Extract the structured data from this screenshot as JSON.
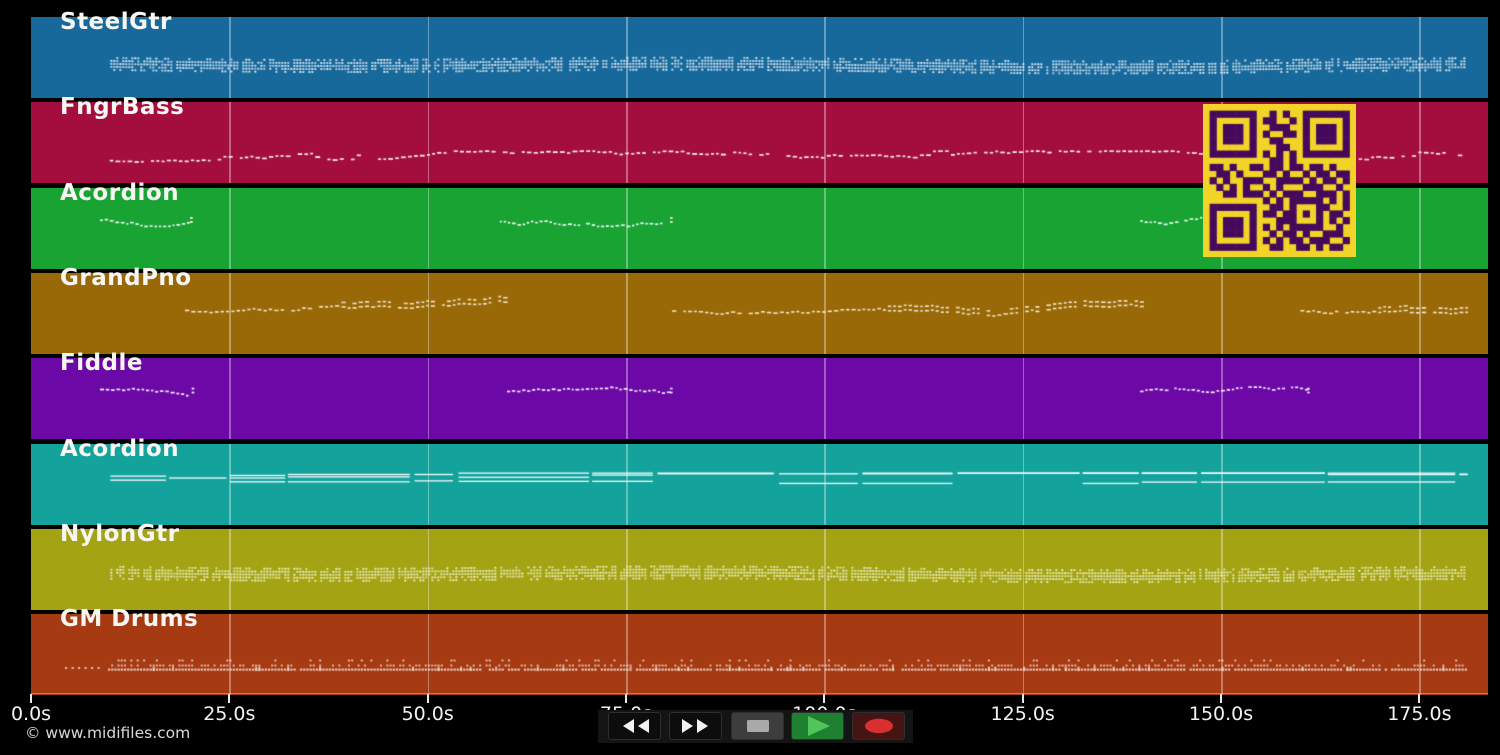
{
  "footer": {
    "copyright": "© www.midifiles.com"
  },
  "axis": {
    "unit": "s",
    "ticks": [
      {
        "label": "0.0s",
        "s": 0
      },
      {
        "label": "25.0s",
        "s": 25
      },
      {
        "label": "50.0s",
        "s": 50
      },
      {
        "label": "75.0s",
        "s": 75
      },
      {
        "label": "100.0s",
        "s": 100
      },
      {
        "label": "125.0s",
        "s": 125
      },
      {
        "label": "150.0s",
        "s": 150
      },
      {
        "label": "175.0s",
        "s": 175
      }
    ],
    "gridline_seconds": [
      25,
      50,
      75,
      100,
      125,
      150,
      175
    ],
    "duration_s": 183.5
  },
  "tracks": [
    {
      "name": "SteelGtr",
      "color": "#17699c",
      "note_color": "#eef4fa",
      "pattern": "strum-band",
      "band_center": 46,
      "segments": [
        [
          10.0,
          180.8
        ]
      ]
    },
    {
      "name": "FngrBass",
      "color": "#a30e3e",
      "note_color": "#ffffff",
      "pattern": "bass-line",
      "band_center": 57,
      "segments": [
        [
          9.3,
          181.1
        ]
      ]
    },
    {
      "name": "Acordion",
      "color": "#18a333",
      "note_color": "#ffffff",
      "pattern": "phrase-wavy",
      "band_center": 32,
      "segments": [
        [
          8.7,
          19.8
        ],
        [
          59.1,
          80.3
        ],
        [
          139.8,
          161.0
        ]
      ]
    },
    {
      "name": "GrandPno",
      "color": "#996908",
      "note_color": "#f7eed8",
      "pattern": "melody-wavy",
      "band_center": 37,
      "segments": [
        [
          19.4,
          59.8
        ],
        [
          80.8,
          140.4
        ],
        [
          160.0,
          180.8
        ]
      ]
    },
    {
      "name": "Fiddle",
      "color": "#6c09a6",
      "note_color": "#ffffff",
      "pattern": "phrase-wavy",
      "band_center": 32,
      "segments": [
        [
          8.7,
          20.0
        ],
        [
          59.5,
          80.3
        ],
        [
          139.8,
          160.6
        ]
      ]
    },
    {
      "name": "Acordion",
      "color": "#14a29d",
      "note_color": "#ffffff",
      "pattern": "chord-lines",
      "band_center": 37,
      "segments": [
        [
          10.0,
          181.1
        ]
      ]
    },
    {
      "name": "NylonGtr",
      "color": "#a3a313",
      "note_color": "#f8f4d0",
      "pattern": "strum-band",
      "band_center": 43,
      "segments": [
        [
          10.0,
          180.8
        ]
      ]
    },
    {
      "name": "GM Drums",
      "color": "#a63a12",
      "note_color": "#f7e3da",
      "pattern": "drums",
      "band_center": 52,
      "segments": [
        [
          4.3,
          8.6
        ],
        [
          9.7,
          181.1
        ]
      ]
    }
  ],
  "transport": {
    "buttons": [
      {
        "name": "rewind",
        "icon": "rewind-icon",
        "bg": "#0d0d0d",
        "fg": "#f2f2f2"
      },
      {
        "name": "fast-forward",
        "icon": "fast-forward-icon",
        "bg": "#0d0d0d",
        "fg": "#f2f2f2"
      },
      {
        "name": "stop",
        "icon": "stop-icon",
        "bg": "#3d3d3d",
        "fg": "#a9a9a9"
      },
      {
        "name": "play",
        "icon": "play-icon",
        "bg": "#1e8132",
        "fg": "#52c558"
      },
      {
        "name": "record",
        "icon": "record-icon",
        "bg": "#471414",
        "fg": "#d92f2f"
      }
    ]
  },
  "qr": {
    "bg": "#f2d327",
    "fg": "#45095c",
    "matrix": [
      "111111100101001111111",
      "100000101100101000001",
      "101110100111001011101",
      "101110101001101011101",
      "101110100110001011101",
      "100000100011001000001",
      "111111101010101111111",
      "000000000110100000000",
      "110100110110110110100",
      "011010001101001011011",
      "101001110011110101101",
      "010101001010001110010",
      "001101110101110011101",
      "000000001010111110101",
      "111111100110100011001",
      "100000101101101010110",
      "101110100011100010101",
      "101110101010111110010",
      "101110100101101001110",
      "100000101010110111001",
      "111111100110011010110"
    ]
  }
}
